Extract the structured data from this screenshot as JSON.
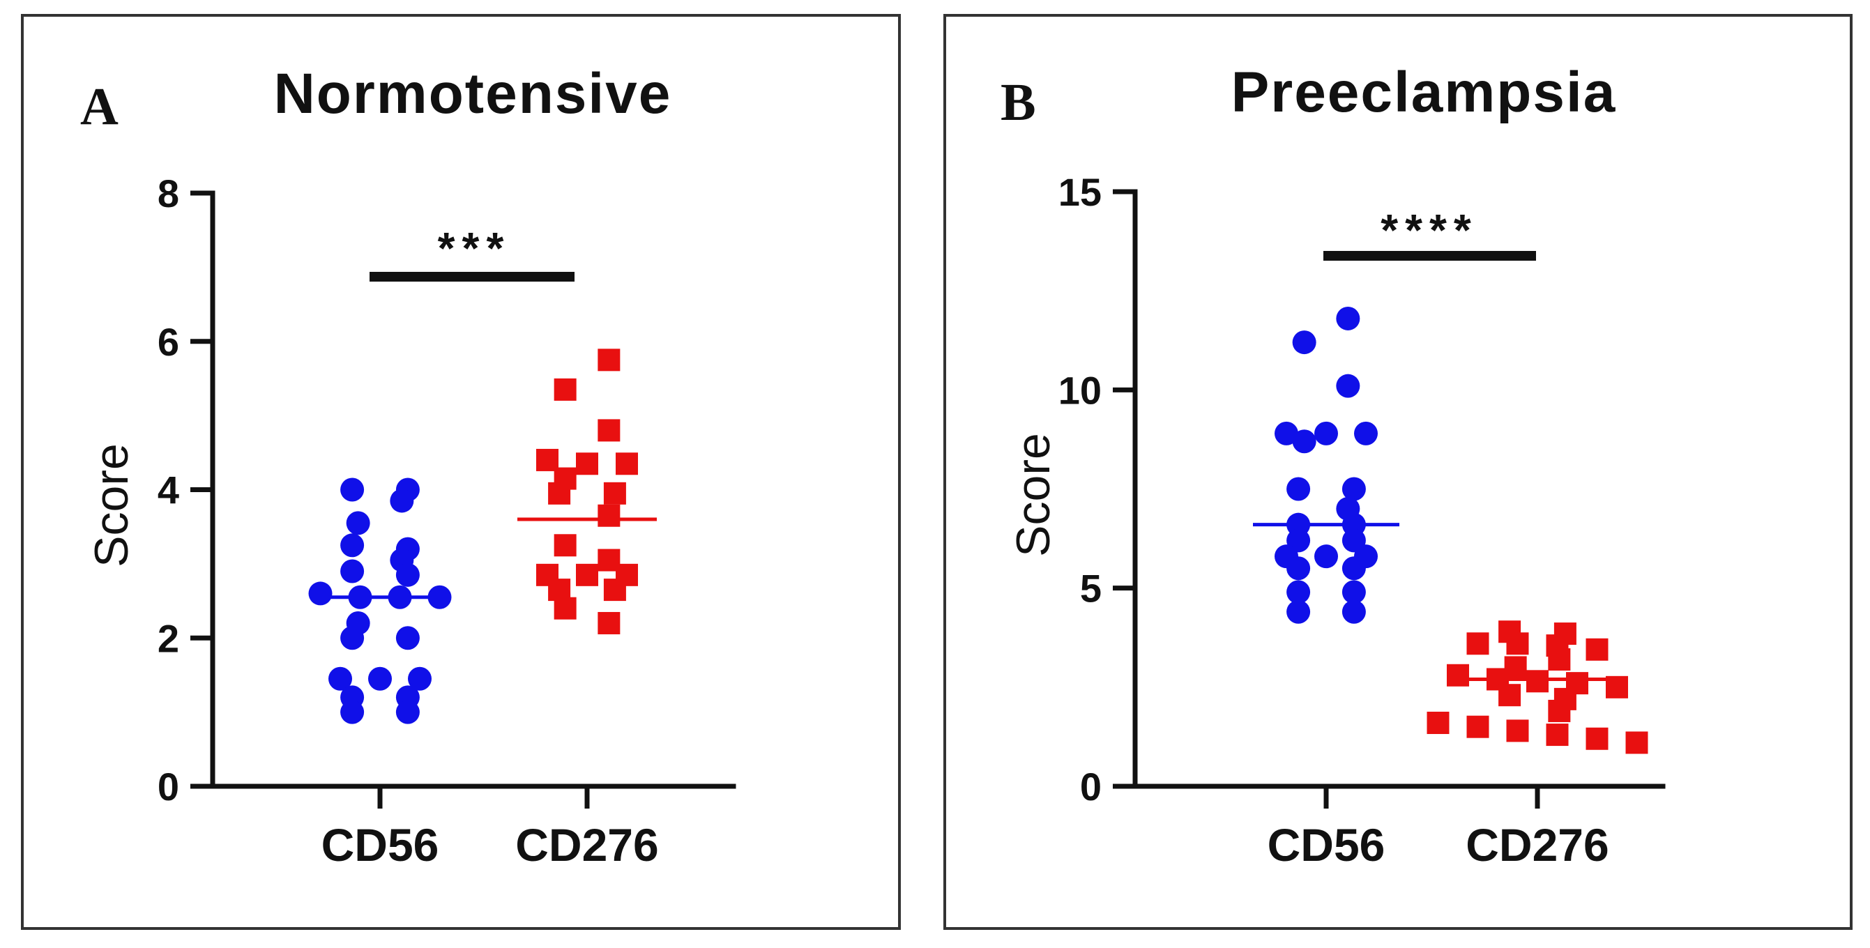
{
  "chart_data": [
    {
      "type": "scatter",
      "panel": "A",
      "title": "Normotensive",
      "xlabel": "",
      "ylabel": "Score",
      "ylim": [
        0,
        8
      ],
      "yticks": [
        0,
        2,
        4,
        6,
        8
      ],
      "categories": [
        "CD56",
        "CD276"
      ],
      "significance": "***",
      "series": [
        {
          "name": "CD56",
          "marker": "circle",
          "color": "#1010e8",
          "mean": 2.55,
          "values": [
            4.0,
            4.0,
            3.85,
            3.55,
            3.25,
            3.2,
            3.05,
            2.9,
            2.85,
            2.6,
            2.55,
            2.55,
            2.55,
            2.2,
            2.0,
            2.0,
            1.45,
            1.45,
            1.45,
            1.2,
            1.2,
            1.0,
            1.0
          ]
        },
        {
          "name": "CD276",
          "marker": "square",
          "color": "#e81010",
          "mean": 3.6,
          "values": [
            5.75,
            5.35,
            4.8,
            4.4,
            4.35,
            4.35,
            4.15,
            3.95,
            3.95,
            3.65,
            3.25,
            3.05,
            2.85,
            2.85,
            2.85,
            2.65,
            2.65,
            2.4,
            2.2
          ]
        }
      ]
    },
    {
      "type": "scatter",
      "panel": "B",
      "title": "Preeclampsia",
      "xlabel": "",
      "ylabel": "Score",
      "ylim": [
        0,
        15
      ],
      "yticks": [
        0,
        5,
        10,
        15
      ],
      "categories": [
        "CD56",
        "CD276"
      ],
      "significance": "****",
      "series": [
        {
          "name": "CD56",
          "marker": "circle",
          "color": "#1010e8",
          "mean": 6.6,
          "values": [
            11.8,
            11.2,
            10.1,
            8.9,
            8.9,
            8.9,
            8.7,
            7.5,
            7.5,
            7.0,
            6.6,
            6.6,
            6.2,
            6.2,
            5.8,
            5.8,
            5.8,
            5.5,
            5.5,
            4.9,
            4.9,
            4.4,
            4.4
          ]
        },
        {
          "name": "CD276",
          "marker": "square",
          "color": "#e81010",
          "mean": 2.7,
          "values": [
            3.9,
            3.85,
            3.6,
            3.6,
            3.55,
            3.45,
            3.2,
            3.0,
            2.8,
            2.7,
            2.65,
            2.6,
            2.5,
            2.3,
            2.2,
            1.9,
            1.6,
            1.5,
            1.4,
            1.3,
            1.2,
            1.1
          ]
        }
      ]
    }
  ]
}
